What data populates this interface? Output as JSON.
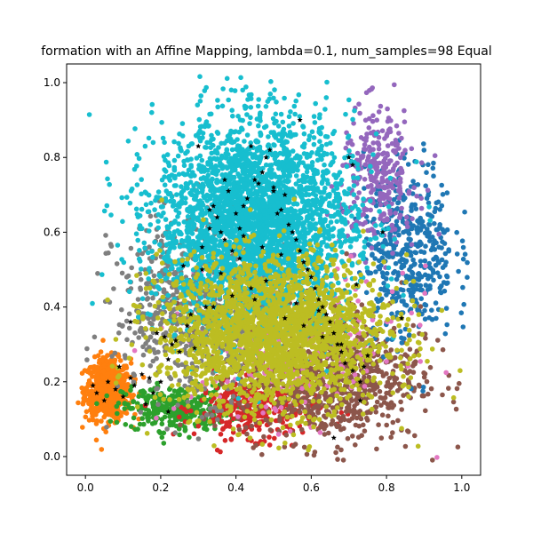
{
  "chart_data": {
    "type": "scatter",
    "title": "formation with an Affine Mapping, lambda=0.1, num_samples=98 Equal",
    "xlabel": "",
    "ylabel": "",
    "xlim": [
      -0.05,
      1.05
    ],
    "ylim": [
      -0.05,
      1.05
    ],
    "x_ticks": [
      0.0,
      0.2,
      0.4,
      0.6,
      0.8,
      1.0
    ],
    "x_tick_labels": [
      "0.0",
      "0.2",
      "0.4",
      "0.6",
      "0.8",
      "1.0"
    ],
    "y_ticks": [
      0.0,
      0.2,
      0.4,
      0.6,
      0.8,
      1.0
    ],
    "y_tick_labels": [
      "0.0",
      "0.2",
      "0.4",
      "0.6",
      "0.8",
      "1.0"
    ],
    "grid": false,
    "legend": "none",
    "series": [
      {
        "color": "#ff7f0e",
        "center": [
          0.06,
          0.18
        ],
        "spread": [
          0.03,
          0.04
        ],
        "count": 700
      },
      {
        "color": "#2ca02c",
        "center": [
          0.24,
          0.13
        ],
        "spread": [
          0.07,
          0.03
        ],
        "count": 350
      },
      {
        "color": "#d62728",
        "center": [
          0.46,
          0.13
        ],
        "spread": [
          0.08,
          0.04
        ],
        "count": 350
      },
      {
        "color": "#8c564b",
        "center": [
          0.65,
          0.22
        ],
        "spread": [
          0.12,
          0.09
        ],
        "count": 900
      },
      {
        "color": "#1f77b4",
        "center": [
          0.86,
          0.55
        ],
        "spread": [
          0.06,
          0.12
        ],
        "count": 450
      },
      {
        "color": "#9467bd",
        "center": [
          0.78,
          0.75
        ],
        "spread": [
          0.05,
          0.09
        ],
        "count": 300
      },
      {
        "color": "#e377c2",
        "center": [
          0.55,
          0.3
        ],
        "spread": [
          0.15,
          0.1
        ],
        "count": 250
      },
      {
        "color": "#7f7f7f",
        "center": [
          0.28,
          0.4
        ],
        "spread": [
          0.1,
          0.12
        ],
        "count": 600
      },
      {
        "color": "#17becf",
        "center": [
          0.45,
          0.62
        ],
        "spread": [
          0.13,
          0.14
        ],
        "count": 3200
      },
      {
        "color": "#bcbd22",
        "center": [
          0.5,
          0.33
        ],
        "spread": [
          0.15,
          0.1
        ],
        "count": 2200
      }
    ],
    "samples": {
      "color": "#000000",
      "marker": "star",
      "count": 98,
      "x": [
        0.02,
        0.03,
        0.05,
        0.06,
        0.08,
        0.1,
        0.12,
        0.13,
        0.15,
        0.17,
        0.18,
        0.2,
        0.21,
        0.22,
        0.23,
        0.25,
        0.27,
        0.28,
        0.3,
        0.31,
        0.32,
        0.33,
        0.34,
        0.35,
        0.36,
        0.37,
        0.38,
        0.39,
        0.4,
        0.41,
        0.42,
        0.43,
        0.44,
        0.45,
        0.46,
        0.47,
        0.48,
        0.49,
        0.5,
        0.51,
        0.52,
        0.53,
        0.54,
        0.55,
        0.56,
        0.57,
        0.58,
        0.59,
        0.6,
        0.61,
        0.62,
        0.63,
        0.64,
        0.65,
        0.66,
        0.67,
        0.68,
        0.69,
        0.7,
        0.71,
        0.72,
        0.73,
        0.74,
        0.75,
        0.12,
        0.19,
        0.24,
        0.29,
        0.34,
        0.39,
        0.44,
        0.48,
        0.53,
        0.58,
        0.63,
        0.68,
        0.33,
        0.37,
        0.42,
        0.47,
        0.52,
        0.26,
        0.31,
        0.45,
        0.56,
        0.62,
        0.71,
        0.16,
        0.22,
        0.36,
        0.41,
        0.5,
        0.57,
        0.66,
        0.73,
        0.79,
        0.84,
        0.09
      ],
      "y": [
        0.19,
        0.17,
        0.15,
        0.2,
        0.18,
        0.16,
        0.21,
        0.19,
        0.22,
        0.21,
        0.17,
        0.2,
        0.32,
        0.26,
        0.3,
        0.28,
        0.35,
        0.38,
        0.83,
        0.56,
        0.4,
        0.66,
        0.67,
        0.64,
        0.6,
        0.74,
        0.71,
        0.55,
        0.65,
        0.61,
        0.67,
        0.69,
        0.83,
        0.74,
        0.73,
        0.76,
        0.8,
        0.82,
        0.71,
        0.65,
        0.66,
        0.7,
        0.62,
        0.6,
        0.58,
        0.55,
        0.52,
        0.5,
        0.48,
        0.45,
        0.42,
        0.4,
        0.38,
        0.36,
        0.33,
        0.3,
        0.28,
        0.25,
        0.8,
        0.78,
        0.46,
        0.2,
        0.24,
        0.27,
        0.36,
        0.33,
        0.31,
        0.29,
        0.4,
        0.43,
        0.45,
        0.47,
        0.37,
        0.35,
        0.32,
        0.3,
        0.61,
        0.58,
        0.59,
        0.56,
        0.54,
        0.51,
        0.5,
        0.42,
        0.41,
        0.39,
        0.23,
        0.14,
        0.12,
        0.49,
        0.53,
        0.72,
        0.9,
        0.05,
        0.15,
        0.6,
        0.37,
        0.24
      ]
    }
  }
}
